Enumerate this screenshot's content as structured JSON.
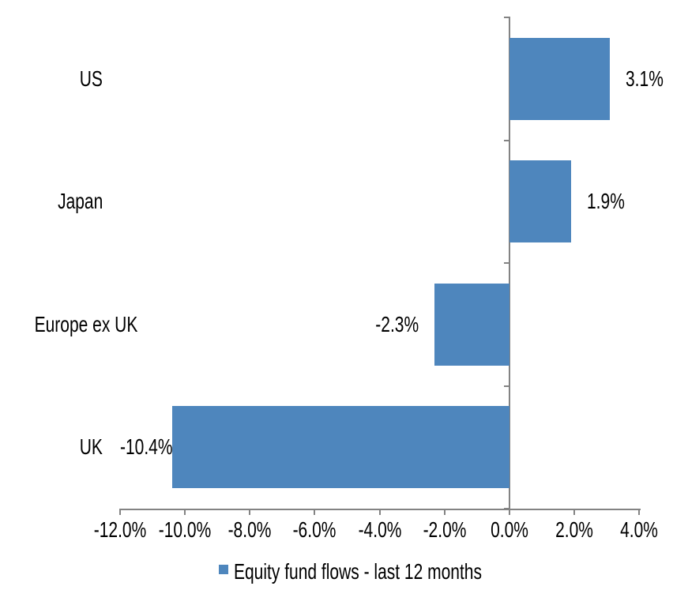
{
  "chart_data": {
    "type": "bar",
    "orientation": "horizontal",
    "categories": [
      "US",
      "Japan",
      "Europe ex UK",
      "UK"
    ],
    "series": [
      {
        "name": "Equity fund flows - last 12 months",
        "values": [
          3.1,
          1.9,
          -2.3,
          -10.4
        ],
        "data_labels": [
          "3.1%",
          "1.9%",
          "-2.3%",
          "-10.4%"
        ]
      }
    ],
    "xlabel": "",
    "ylabel": "",
    "xlim": [
      -12,
      4
    ],
    "x_ticks": [
      -12,
      -10,
      -8,
      -6,
      -4,
      -2,
      0,
      2,
      4
    ],
    "x_tick_labels": [
      "-12.0%",
      "-10.0%",
      "-8.0%",
      "-6.0%",
      "-4.0%",
      "-2.0%",
      "0.0%",
      "2.0%",
      "4.0%"
    ],
    "grid": false,
    "legend_position": "bottom"
  },
  "legend": {
    "label": "Equity fund flows - last 12 months"
  },
  "colors": {
    "bar": "#4E86BD",
    "axis": "#838383",
    "text": "#000000",
    "background": "#FFFFFF"
  }
}
